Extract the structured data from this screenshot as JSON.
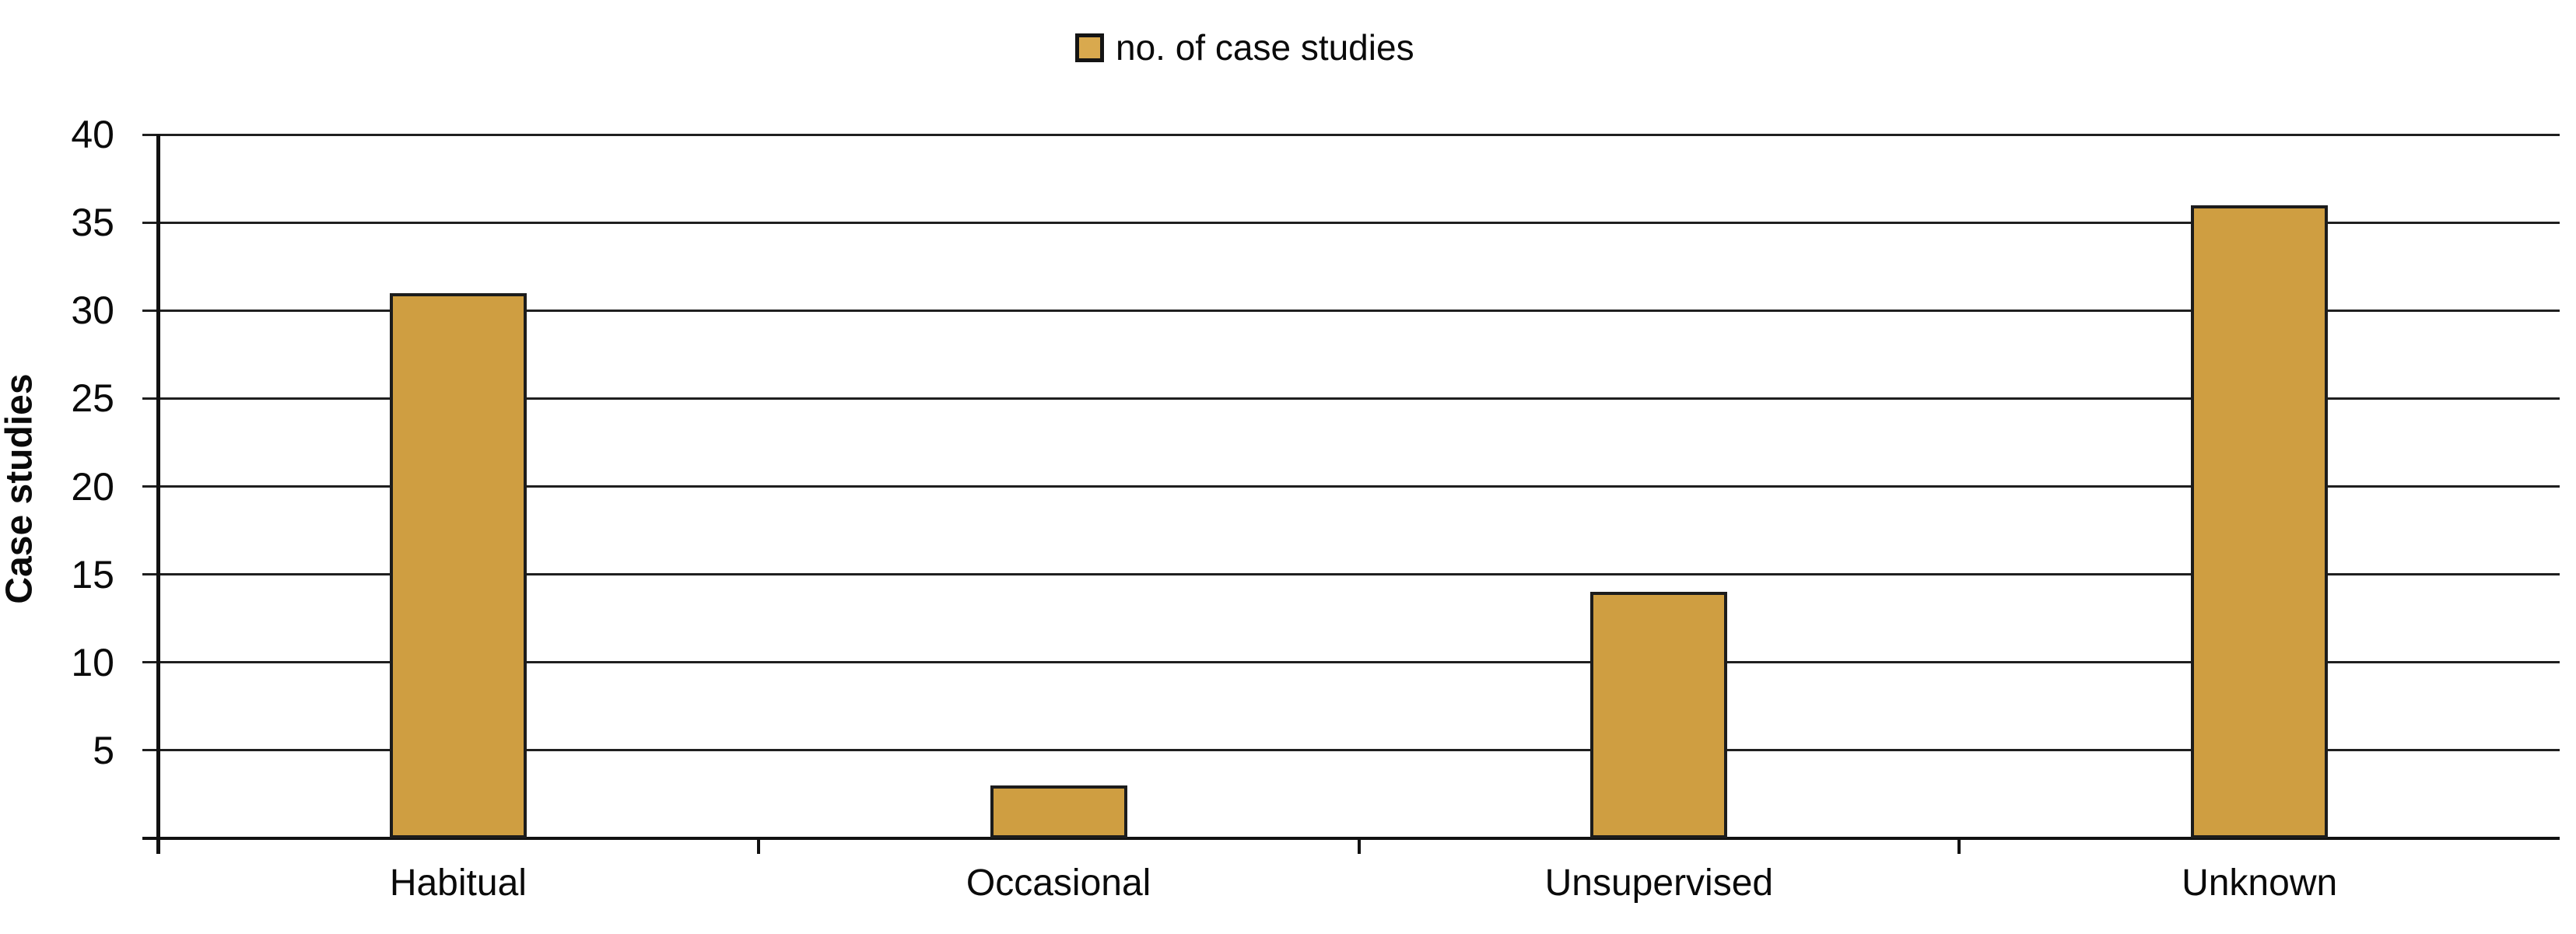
{
  "legend": {
    "label": "no. of case studies"
  },
  "chart_data": {
    "type": "bar",
    "categories": [
      "Habitual",
      "Occasional",
      "Unsupervised",
      "Unknown"
    ],
    "values": [
      31,
      3,
      14,
      36
    ],
    "series_name": "no. of case studies",
    "title": "",
    "xlabel": "",
    "ylabel": "Case studies",
    "ylim": [
      0,
      40
    ],
    "ytick_step": 5,
    "ytick_labels": [
      "40",
      "35",
      "30",
      "25",
      "20",
      "15",
      "10",
      "5"
    ],
    "grid": "horizontal-only",
    "legend_position": "top-center",
    "bar_color": "#CF9E41",
    "bar_border_color": "#1C1C1C",
    "axis_color": "#111111",
    "text_color": "#0A0A0A"
  }
}
